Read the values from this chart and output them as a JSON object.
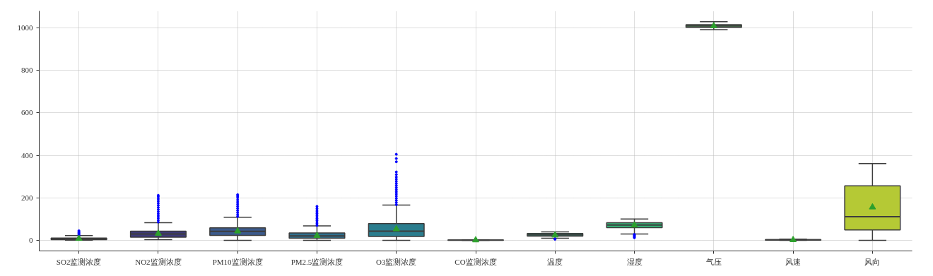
{
  "chart_data": {
    "type": "box",
    "categories": [
      "SO2监测浓度",
      "NO2监测浓度",
      "PM10监测浓度",
      "PM2.5监测浓度",
      "O3监测浓度",
      "CO监测浓度",
      "温度",
      "湿度",
      "气压",
      "风速",
      "风向"
    ],
    "colors": [
      "#472d4f",
      "#3e3a7a",
      "#3b5a8c",
      "#2f6f8e",
      "#2a7d8e",
      "#21918c",
      "#26a07e",
      "#35b779",
      "#57c466",
      "#8ed645",
      "#b5c935"
    ],
    "boxes": [
      {
        "low": 1,
        "q1": 3,
        "median": 6,
        "q3": 11,
        "high": 22,
        "mean": 8,
        "outliers": [
          24,
          28,
          32,
          36,
          40,
          45
        ]
      },
      {
        "low": 3,
        "q1": 15,
        "median": 30,
        "q3": 43,
        "high": 83,
        "mean": 32,
        "outliers": [
          86,
          95,
          105,
          115,
          125,
          135,
          145,
          155,
          165,
          175,
          185,
          195,
          205,
          212
        ]
      },
      {
        "low": 0,
        "q1": 23,
        "median": 42,
        "q3": 59,
        "high": 109,
        "mean": 43,
        "outliers": [
          112,
          120,
          130,
          140,
          150,
          160,
          170,
          180,
          190,
          200,
          208,
          215
        ]
      },
      {
        "low": 0,
        "q1": 10,
        "median": 21,
        "q3": 35,
        "high": 68,
        "mean": 22,
        "outliers": [
          70,
          78,
          86,
          94,
          102,
          110,
          118,
          126,
          134,
          142,
          150,
          160
        ]
      },
      {
        "low": 0,
        "q1": 18,
        "median": 43,
        "q3": 79,
        "high": 166,
        "mean": 53,
        "outliers": [
          168,
          178,
          188,
          198,
          208,
          218,
          228,
          238,
          248,
          258,
          268,
          278,
          288,
          298,
          310,
          322,
          370,
          385,
          405
        ]
      },
      {
        "low": 0,
        "q1": 0.6,
        "median": 0.9,
        "q3": 1.2,
        "high": 2,
        "mean": 1
      },
      {
        "low": 10,
        "q1": 20,
        "median": 26,
        "q3": 32,
        "high": 40,
        "mean": 24,
        "outliers": [
          5,
          7
        ]
      },
      {
        "low": 30,
        "q1": 60,
        "median": 72,
        "q3": 83,
        "high": 100,
        "mean": 71,
        "outliers": [
          12,
          16,
          20,
          24,
          28
        ]
      },
      {
        "low": 992,
        "q1": 1003,
        "median": 1009,
        "q3": 1015,
        "high": 1029,
        "mean": 1009
      },
      {
        "low": 0,
        "q1": 1,
        "median": 2,
        "q3": 3,
        "high": 6,
        "mean": 2
      },
      {
        "low": 0,
        "q1": 49,
        "median": 111,
        "q3": 257,
        "high": 361,
        "mean": 156
      }
    ],
    "ylim": [
      -50,
      1080
    ],
    "yticks": [
      0,
      200,
      400,
      600,
      800,
      1000
    ],
    "grid": true
  }
}
